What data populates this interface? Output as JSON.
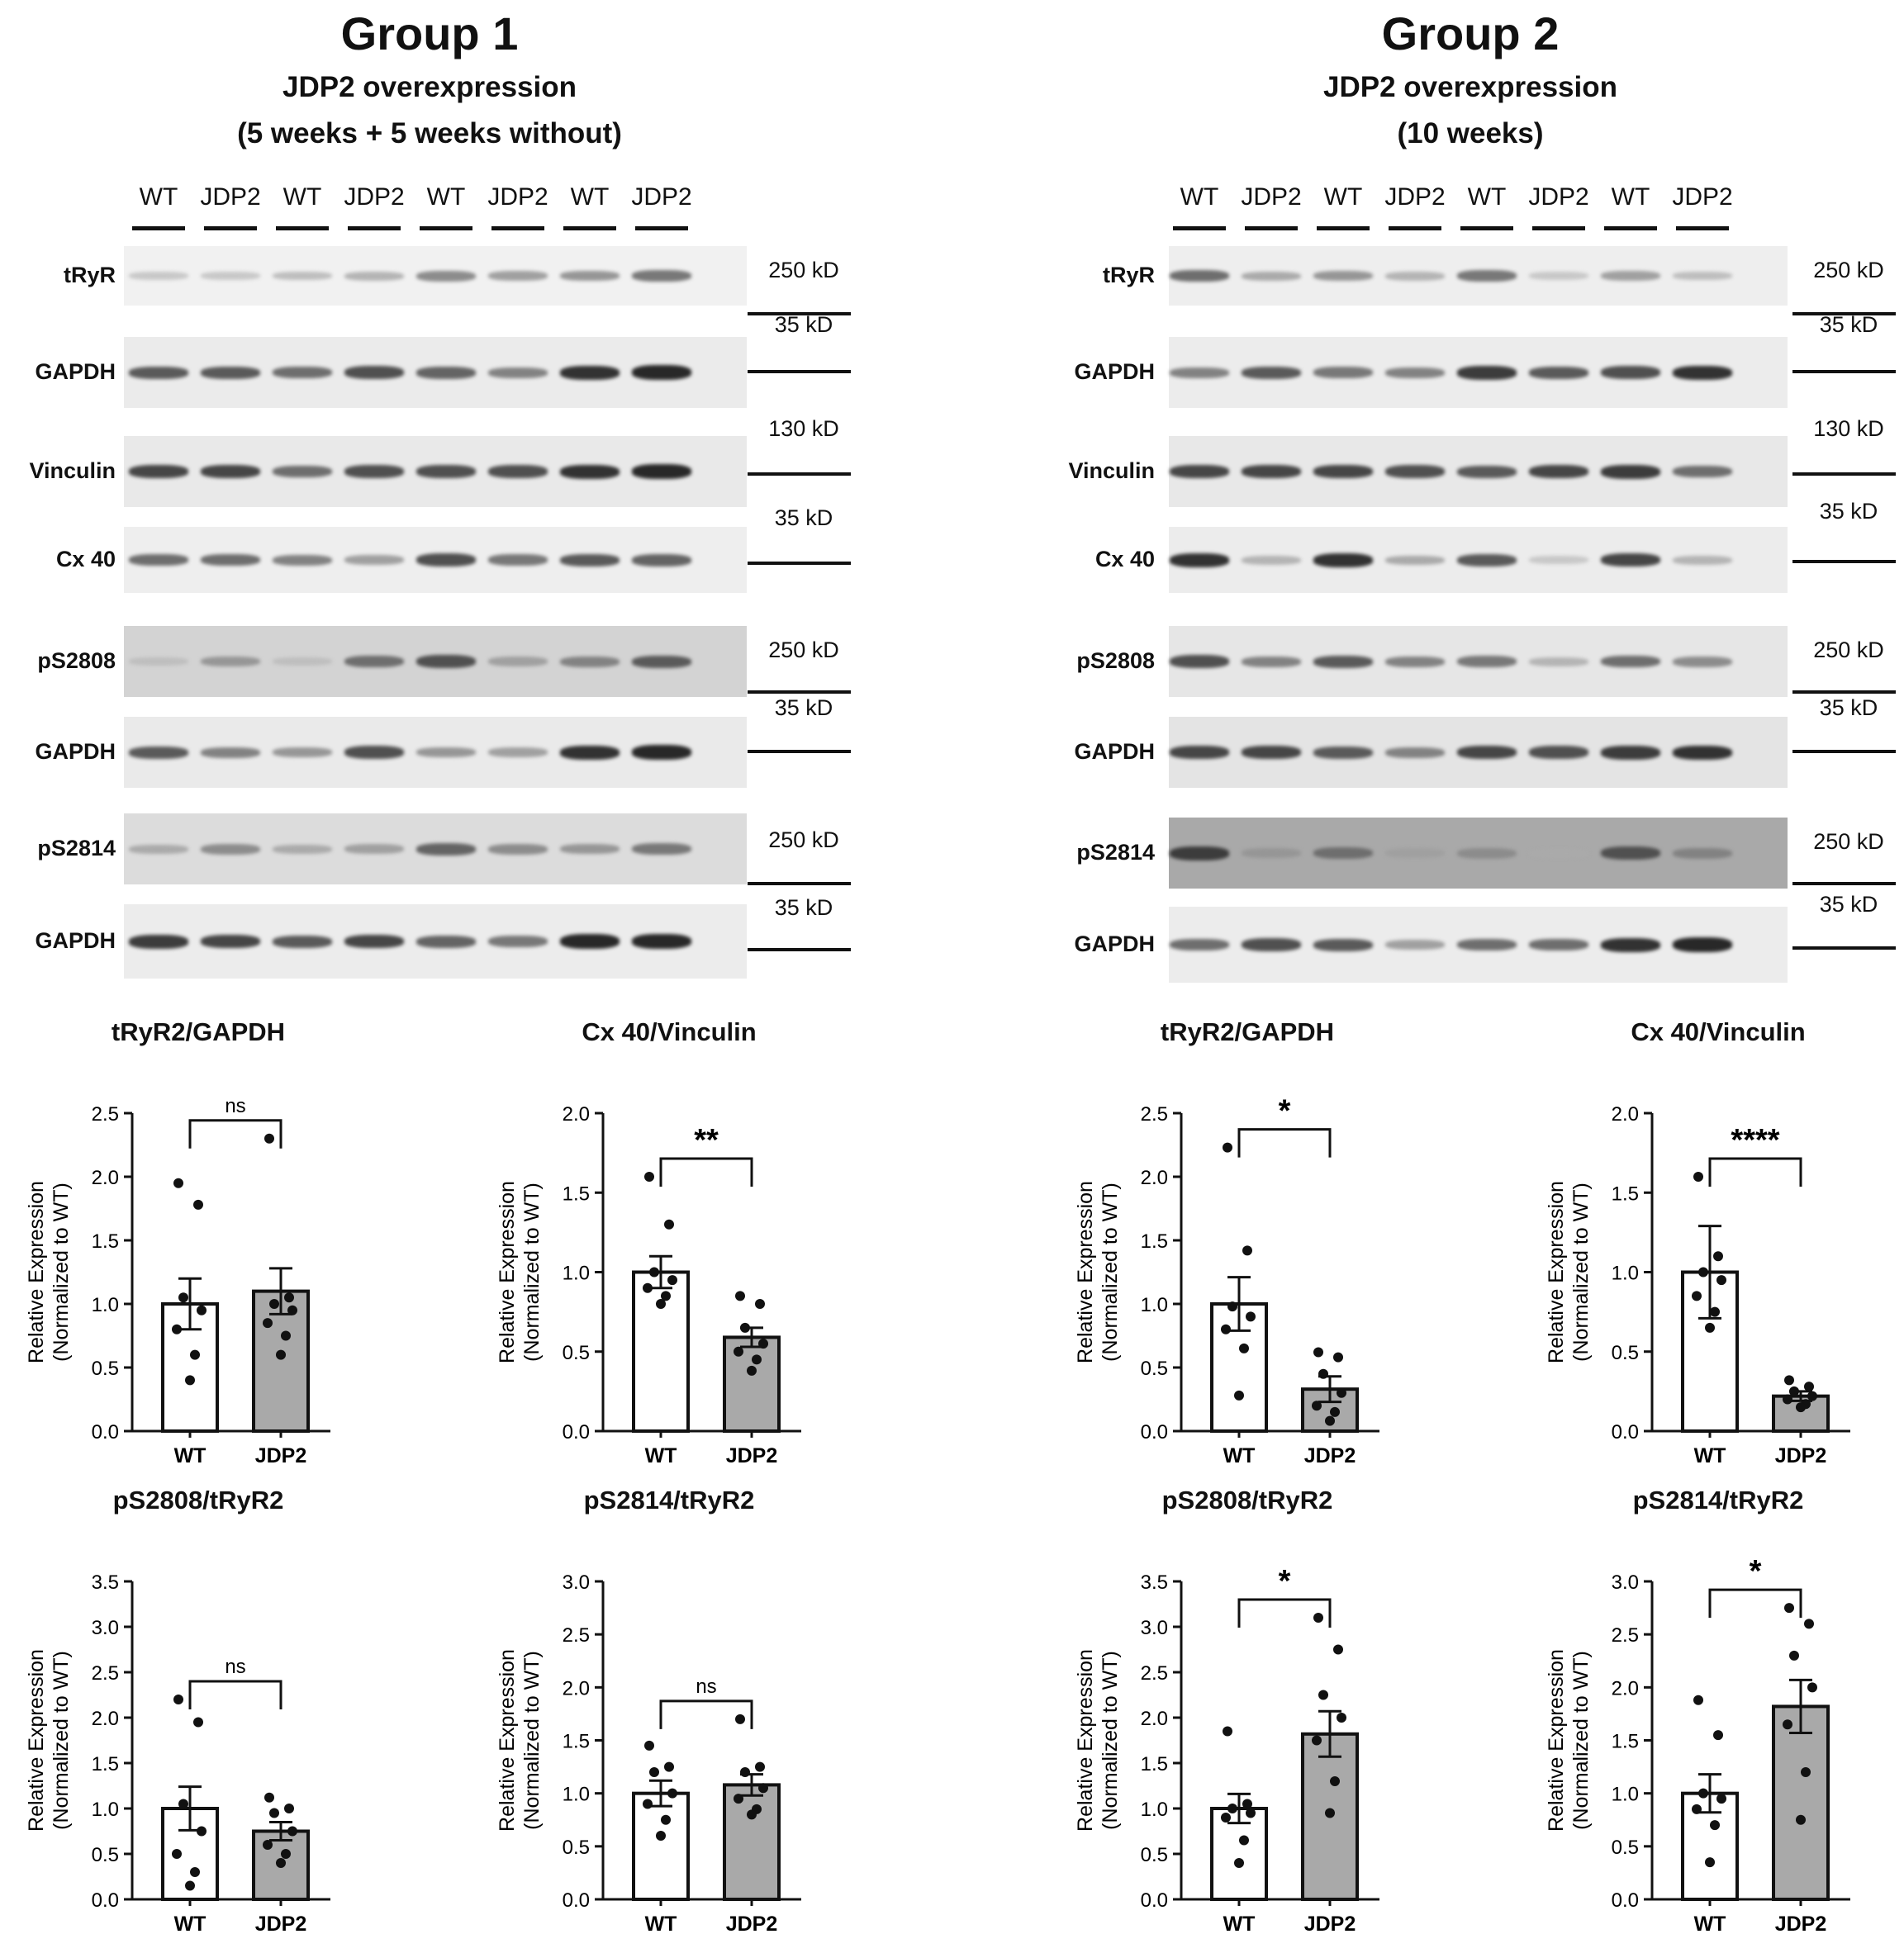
{
  "groups": [
    {
      "title": "Group 1",
      "subtitle_line1": "JDP2 overexpression",
      "subtitle_line2": "(5 weeks + 5 weeks without)",
      "lanes": [
        "WT",
        "JDP2",
        "WT",
        "JDP2",
        "WT",
        "JDP2",
        "WT",
        "JDP2"
      ],
      "blots": [
        {
          "label": "tRyR",
          "mw": "250 kD"
        },
        {
          "label": "GAPDH",
          "mw": "35 kD"
        },
        {
          "label": "Vinculin",
          "mw": "130 kD"
        },
        {
          "label": "Cx 40",
          "mw": "35 kD"
        },
        {
          "label": "pS2808",
          "mw": "250 kD"
        },
        {
          "label": "GAPDH",
          "mw": "35 kD"
        },
        {
          "label": "pS2814",
          "mw": "250 kD"
        },
        {
          "label": "GAPDH",
          "mw": "35 kD"
        }
      ]
    },
    {
      "title": "Group 2",
      "subtitle_line1": "JDP2 overexpression",
      "subtitle_line2": "(10 weeks)",
      "lanes": [
        "WT",
        "JDP2",
        "WT",
        "JDP2",
        "WT",
        "JDP2",
        "WT",
        "JDP2"
      ],
      "blots": [
        {
          "label": "tRyR",
          "mw": "250 kD"
        },
        {
          "label": "GAPDH",
          "mw": "35 kD"
        },
        {
          "label": "Vinculin",
          "mw": "130 kD"
        },
        {
          "label": "Cx 40",
          "mw": "35 kD"
        },
        {
          "label": "pS2808",
          "mw": "250 kD"
        },
        {
          "label": "GAPDH",
          "mw": "35 kD"
        },
        {
          "label": "pS2814",
          "mw": "250 kD"
        },
        {
          "label": "GAPDH",
          "mw": "35 kD"
        }
      ]
    }
  ],
  "chart_data": [
    {
      "type": "bar",
      "title": "tRyR2/GAPDH",
      "ylabel": "Relative Expression",
      "ylabel2": "(Normalized to WT)",
      "categories": [
        "WT",
        "JDP2"
      ],
      "values": [
        1.0,
        1.1
      ],
      "errors": [
        0.2,
        0.18
      ],
      "ylim": [
        0,
        2.5
      ],
      "ticks": [
        0.0,
        0.5,
        1.0,
        1.5,
        2.0,
        2.5
      ],
      "tick_labels": [
        "0.0",
        "0.5",
        "1.0",
        "1.5",
        "2.0",
        "2.5"
      ],
      "significance": "ns",
      "points": [
        [
          1.95,
          1.78,
          1.05,
          0.95,
          0.8,
          0.6,
          0.4
        ],
        [
          2.3,
          1.05,
          1.0,
          0.95,
          0.85,
          0.75,
          0.6
        ]
      ],
      "bar_colors": [
        "#ffffff",
        "#a9a9a9"
      ]
    },
    {
      "type": "bar",
      "title": "Cx 40/Vinculin",
      "ylabel": "Relative Expression",
      "ylabel2": "(Normalized to WT)",
      "categories": [
        "WT",
        "JDP2"
      ],
      "values": [
        1.0,
        0.59
      ],
      "errors": [
        0.1,
        0.06
      ],
      "ylim": [
        0,
        2.0
      ],
      "ticks": [
        0.0,
        0.5,
        1.0,
        1.5,
        2.0
      ],
      "tick_labels": [
        "0.0",
        "0.5",
        "1.0",
        "1.5",
        "2.0"
      ],
      "significance": "**",
      "points": [
        [
          1.6,
          1.3,
          1.0,
          0.95,
          0.9,
          0.85,
          0.8
        ],
        [
          0.85,
          0.8,
          0.65,
          0.55,
          0.5,
          0.45,
          0.38
        ]
      ],
      "bar_colors": [
        "#ffffff",
        "#a9a9a9"
      ]
    },
    {
      "type": "bar",
      "title": "tRyR2/GAPDH",
      "ylabel": "Relative Expression",
      "ylabel2": "(Normalized to WT)",
      "categories": [
        "WT",
        "JDP2"
      ],
      "values": [
        1.0,
        0.33
      ],
      "errors": [
        0.21,
        0.1
      ],
      "ylim": [
        0,
        2.5
      ],
      "ticks": [
        0.0,
        0.5,
        1.0,
        1.5,
        2.0,
        2.5
      ],
      "tick_labels": [
        "0.0",
        "0.5",
        "1.0",
        "1.5",
        "2.0",
        "2.5"
      ],
      "significance": "*",
      "points": [
        [
          2.23,
          1.42,
          0.98,
          0.9,
          0.8,
          0.65,
          0.28
        ],
        [
          0.62,
          0.58,
          0.45,
          0.3,
          0.2,
          0.15,
          0.08
        ]
      ],
      "bar_colors": [
        "#ffffff",
        "#a9a9a9"
      ]
    },
    {
      "type": "bar",
      "title": "Cx 40/Vinculin",
      "ylabel": "Relative Expression",
      "ylabel2": "(Normalized to WT)",
      "categories": [
        "WT",
        "JDP2"
      ],
      "values": [
        1.0,
        0.22
      ],
      "errors": [
        0.29,
        0.03
      ],
      "ylim": [
        0,
        2.0
      ],
      "ticks": [
        0.0,
        0.5,
        1.0,
        1.5,
        2.0
      ],
      "tick_labels": [
        "0.0",
        "0.5",
        "1.0",
        "1.5",
        "2.0"
      ],
      "significance": "****",
      "points": [
        [
          1.6,
          1.1,
          1.0,
          0.95,
          0.85,
          0.75,
          0.65
        ],
        [
          0.32,
          0.28,
          0.25,
          0.22,
          0.2,
          0.17,
          0.15
        ]
      ],
      "bar_colors": [
        "#ffffff",
        "#a9a9a9"
      ]
    },
    {
      "type": "bar",
      "title": "pS2808/tRyR2",
      "ylabel": "Relative Expression",
      "ylabel2": "(Normalized to WT)",
      "categories": [
        "WT",
        "JDP2"
      ],
      "values": [
        1.0,
        0.75
      ],
      "errors": [
        0.24,
        0.1
      ],
      "ylim": [
        0,
        3.5
      ],
      "ticks": [
        0.0,
        0.5,
        1.0,
        1.5,
        2.0,
        2.5,
        3.0,
        3.5
      ],
      "tick_labels": [
        "0.0",
        "0.5",
        "1.0",
        "1.5",
        "2.0",
        "2.5",
        "3.0",
        "3.5"
      ],
      "significance": "ns",
      "points": [
        [
          2.2,
          1.95,
          1.05,
          0.75,
          0.5,
          0.3,
          0.15
        ],
        [
          1.12,
          1.0,
          0.95,
          0.75,
          0.6,
          0.5,
          0.4
        ]
      ],
      "bar_colors": [
        "#ffffff",
        "#a9a9a9"
      ]
    },
    {
      "type": "bar",
      "title": "pS2814/tRyR2",
      "ylabel": "Relative Expression",
      "ylabel2": "(Normalized to WT)",
      "categories": [
        "WT",
        "JDP2"
      ],
      "values": [
        1.0,
        1.08
      ],
      "errors": [
        0.12,
        0.1
      ],
      "ylim": [
        0,
        3.0
      ],
      "ticks": [
        0.0,
        0.5,
        1.0,
        1.5,
        2.0,
        2.5,
        3.0
      ],
      "tick_labels": [
        "0.0",
        "0.5",
        "1.0",
        "1.5",
        "2.0",
        "2.5",
        "3.0"
      ],
      "significance": "ns",
      "points": [
        [
          1.45,
          1.25,
          1.2,
          1.0,
          0.9,
          0.75,
          0.6
        ],
        [
          1.7,
          1.25,
          1.2,
          1.05,
          0.95,
          0.85,
          0.8
        ]
      ],
      "bar_colors": [
        "#ffffff",
        "#a9a9a9"
      ]
    },
    {
      "type": "bar",
      "title": "pS2808/tRyR2",
      "ylabel": "Relative Expression",
      "ylabel2": "(Normalized to WT)",
      "categories": [
        "WT",
        "JDP2"
      ],
      "values": [
        1.0,
        1.82
      ],
      "errors": [
        0.16,
        0.25
      ],
      "ylim": [
        0,
        3.5
      ],
      "ticks": [
        0.0,
        0.5,
        1.0,
        1.5,
        2.0,
        2.5,
        3.0,
        3.5
      ],
      "tick_labels": [
        "0.0",
        "0.5",
        "1.0",
        "1.5",
        "2.0",
        "2.5",
        "3.0",
        "3.5"
      ],
      "significance": "*",
      "points": [
        [
          1.85,
          1.05,
          1.0,
          0.95,
          0.9,
          0.65,
          0.4
        ],
        [
          3.1,
          2.75,
          2.25,
          2.0,
          1.75,
          1.3,
          0.95
        ]
      ],
      "bar_colors": [
        "#ffffff",
        "#a9a9a9"
      ]
    },
    {
      "type": "bar",
      "title": "pS2814/tRyR2",
      "ylabel": "Relative Expression",
      "ylabel2": "(Normalized to WT)",
      "categories": [
        "WT",
        "JDP2"
      ],
      "values": [
        1.0,
        1.82
      ],
      "errors": [
        0.18,
        0.25
      ],
      "ylim": [
        0,
        3.0
      ],
      "ticks": [
        0.0,
        0.5,
        1.0,
        1.5,
        2.0,
        2.5,
        3.0
      ],
      "tick_labels": [
        "0.0",
        "0.5",
        "1.0",
        "1.5",
        "2.0",
        "2.5",
        "3.0"
      ],
      "significance": "*",
      "points": [
        [
          1.88,
          1.55,
          1.0,
          0.95,
          0.85,
          0.7,
          0.35
        ],
        [
          2.75,
          2.6,
          2.3,
          2.0,
          1.65,
          1.2,
          0.75
        ]
      ],
      "bar_colors": [
        "#ffffff",
        "#a9a9a9"
      ]
    }
  ]
}
